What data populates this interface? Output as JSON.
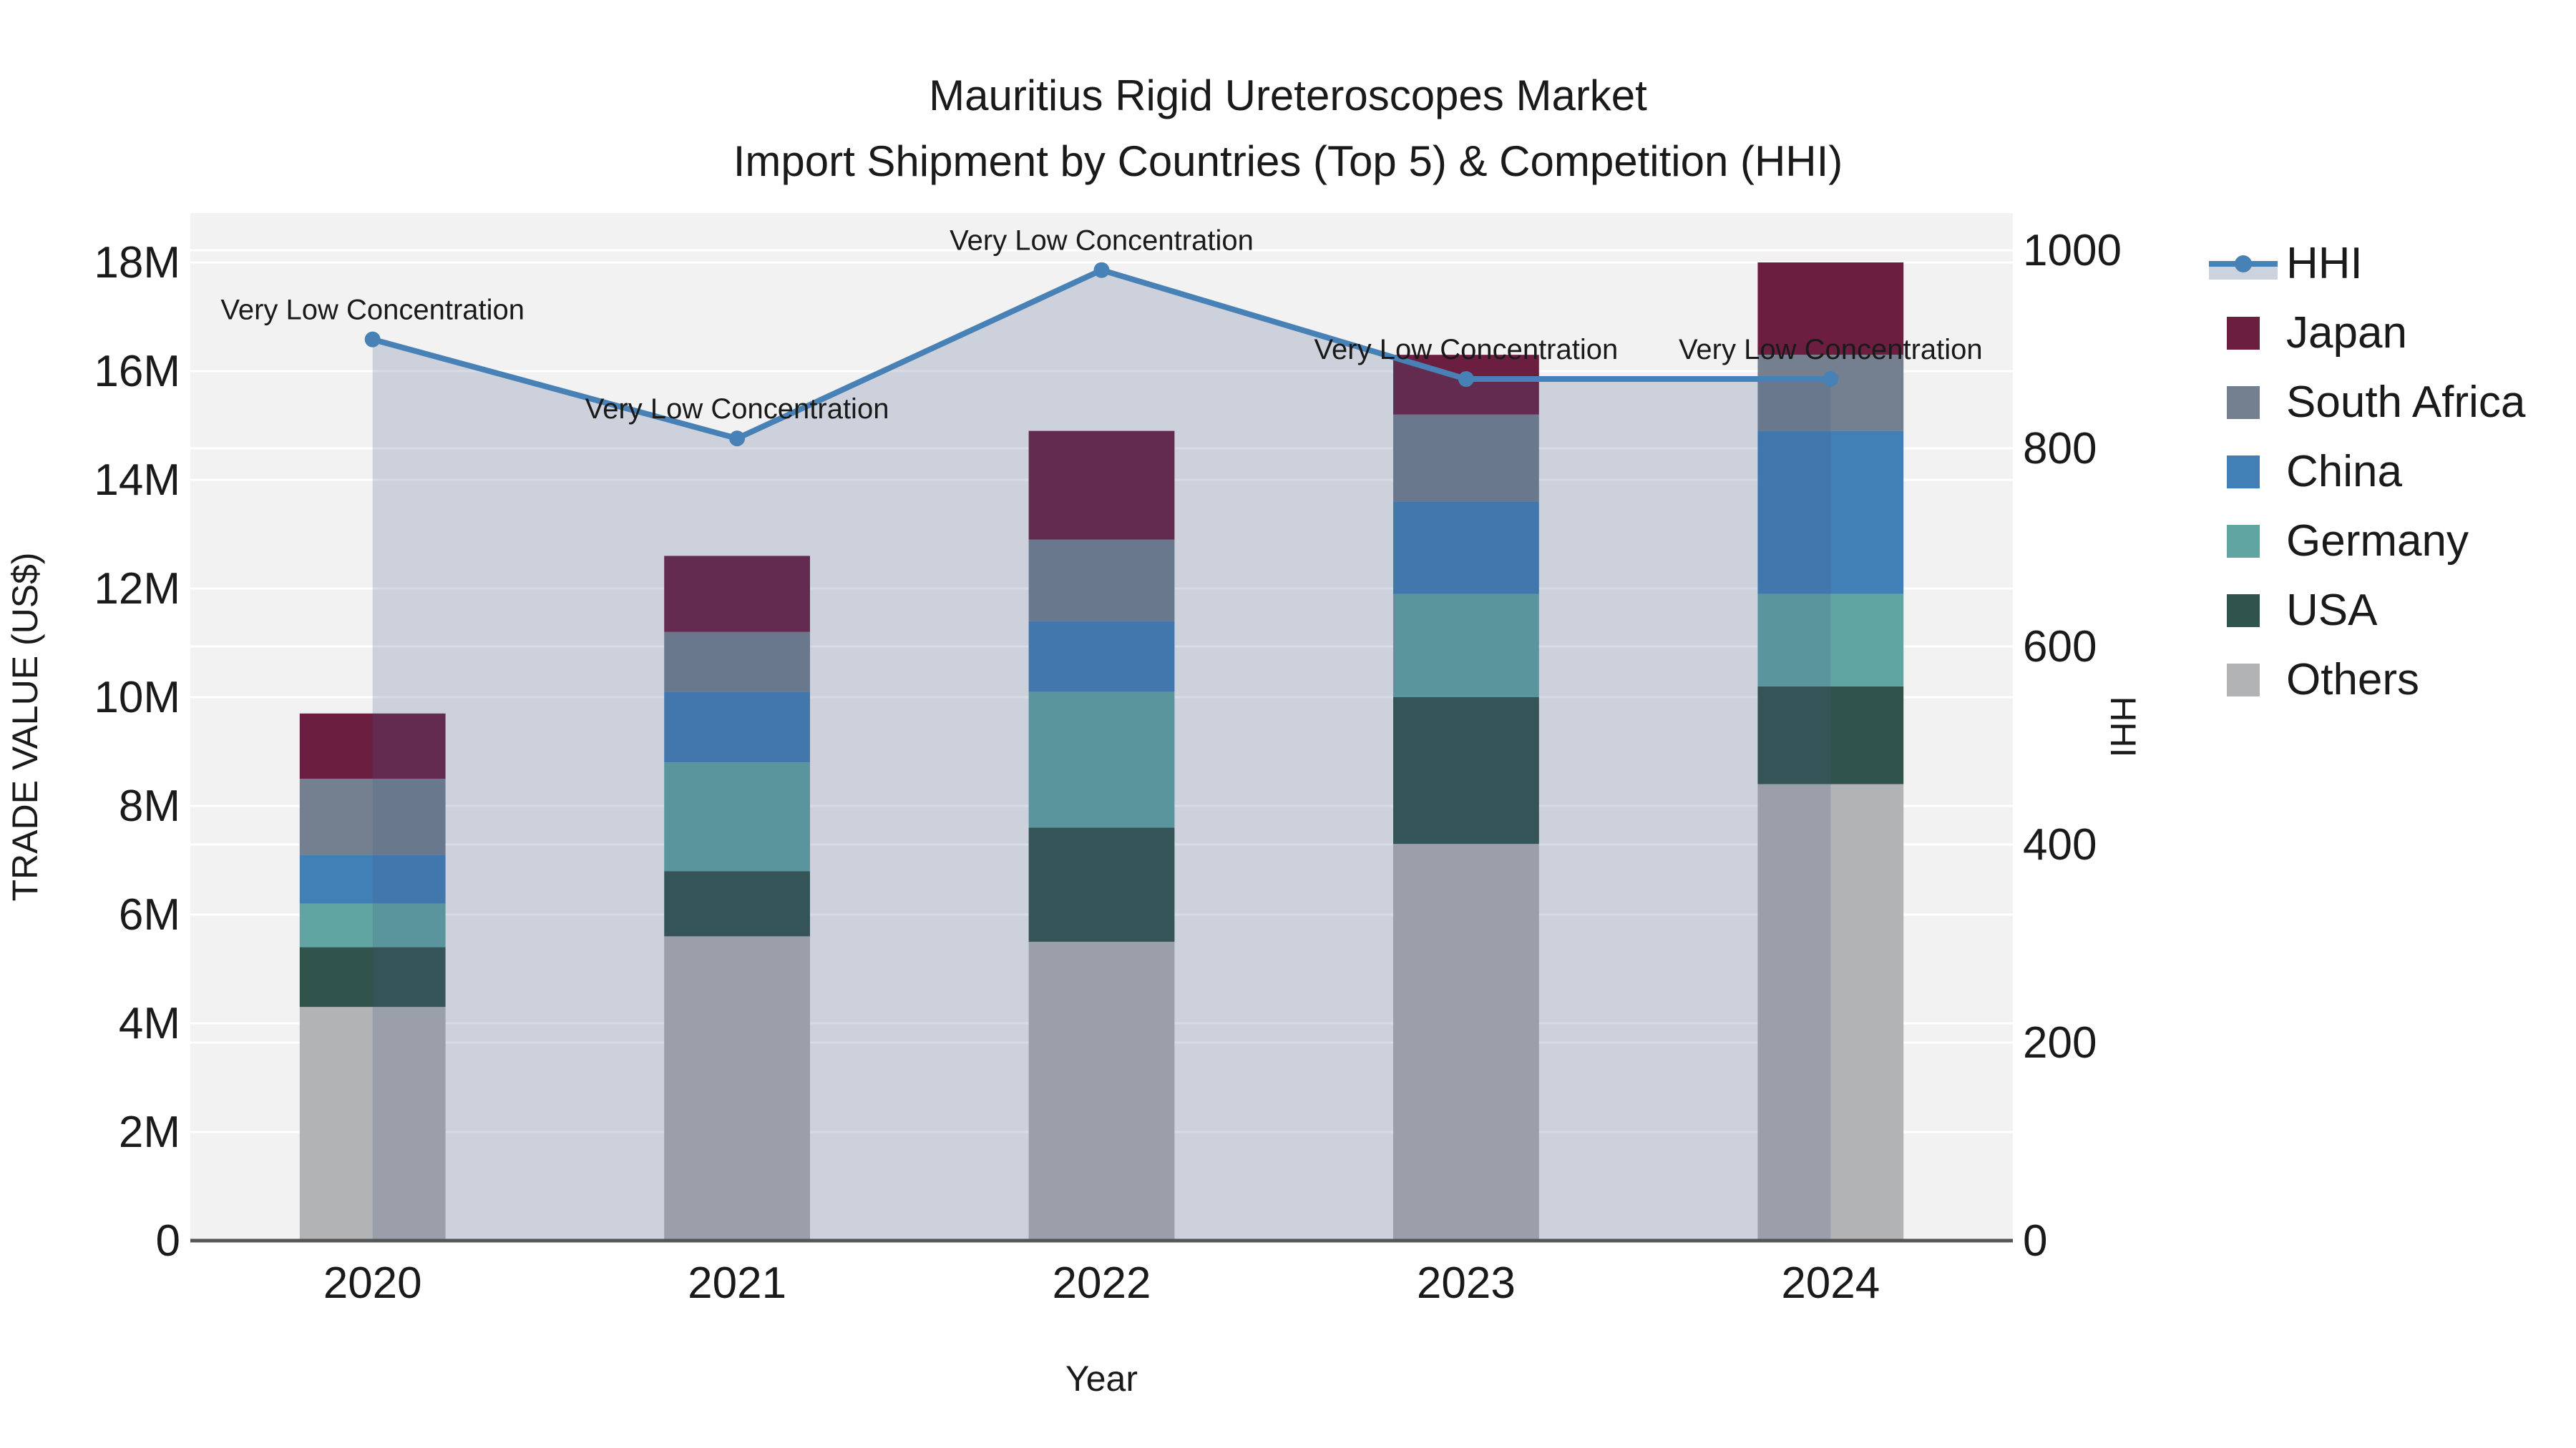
{
  "title": {
    "line1": "Mauritius Rigid Ureteroscopes Market",
    "line2": "Import Shipment by Countries (Top 5) & Competition (HHI)"
  },
  "axes": {
    "x": {
      "title": "Year",
      "categories": [
        "2020",
        "2021",
        "2022",
        "2023",
        "2024"
      ]
    },
    "y_left": {
      "title": "TRADE VALUE (US$)",
      "tick_labels": [
        "0",
        "2M",
        "4M",
        "6M",
        "8M",
        "10M",
        "12M",
        "14M",
        "16M",
        "18M"
      ],
      "tick_values_musd": [
        0,
        2,
        4,
        6,
        8,
        10,
        12,
        14,
        16,
        18
      ]
    },
    "y_right": {
      "title": "HHI",
      "tick_labels": [
        "0",
        "200",
        "400",
        "600",
        "800",
        "1000"
      ],
      "tick_values": [
        0,
        200,
        400,
        600,
        800,
        1000
      ]
    }
  },
  "legend": {
    "items": [
      {
        "label": "HHI",
        "type": "line",
        "color": "#4781b5",
        "band_color": "#ccd3de"
      },
      {
        "label": "Japan",
        "type": "swatch",
        "color": "#6c1e41"
      },
      {
        "label": "South Africa",
        "type": "swatch",
        "color": "#74808f"
      },
      {
        "label": "China",
        "type": "swatch",
        "color": "#417fb7"
      },
      {
        "label": "Germany",
        "type": "swatch",
        "color": "#61a5a2"
      },
      {
        "label": "USA",
        "type": "swatch",
        "color": "#30534b"
      },
      {
        "label": "Others",
        "type": "swatch",
        "color": "#b2b3b4"
      }
    ]
  },
  "chart_data": {
    "type": "bar+line",
    "title": "Mauritius Rigid Ureteroscopes Market — Import Shipment by Countries (Top 5) & Competition (HHI)",
    "categories": [
      "2020",
      "2021",
      "2022",
      "2023",
      "2024"
    ],
    "bar_unit": "million US$",
    "stack_order_bottom_to_top": [
      "Others",
      "USA",
      "Germany",
      "China",
      "South Africa",
      "Japan"
    ],
    "series": [
      {
        "name": "Others",
        "color": "#b2b3b4",
        "values": [
          4.3,
          5.6,
          5.5,
          7.3,
          8.4
        ]
      },
      {
        "name": "USA",
        "color": "#30534b",
        "values": [
          1.1,
          1.2,
          2.1,
          2.7,
          1.8
        ]
      },
      {
        "name": "Germany",
        "color": "#61a5a2",
        "values": [
          0.8,
          2.0,
          2.5,
          1.9,
          1.7
        ]
      },
      {
        "name": "China",
        "color": "#417fb7",
        "values": [
          0.9,
          1.3,
          1.3,
          1.7,
          3.0
        ]
      },
      {
        "name": "South Africa",
        "color": "#74808f",
        "values": [
          1.4,
          1.1,
          1.5,
          1.6,
          1.4
        ]
      },
      {
        "name": "Japan",
        "color": "#6c1e41",
        "values": [
          1.2,
          1.4,
          2.0,
          1.1,
          1.7
        ]
      }
    ],
    "bar_totals_musd": [
      9.7,
      12.6,
      14.9,
      16.3,
      18.0
    ],
    "line": {
      "name": "HHI",
      "axis": "right",
      "color": "#4781b5",
      "fill_color": "rgba(67,92,138,0.22)",
      "values": [
        910,
        810,
        980,
        870,
        870
      ]
    },
    "annotations": [
      "Very Low Concentration",
      "Very Low Concentration",
      "Very Low Concentration",
      "Very Low Concentration",
      "Very Low Concentration"
    ],
    "xlabel": "Year",
    "ylabel_left": "TRADE VALUE (US$)",
    "ylabel_right": "HHI",
    "ylim_left_musd": [
      0,
      18.9
    ],
    "ylim_right": [
      0,
      1012
    ],
    "grid": true,
    "legend_position": "right"
  },
  "colors": {
    "figure_bg": "#ffffff",
    "plot_bg": "#f2f2f2",
    "grid": "#ffffff",
    "axis_line": "#555555",
    "text": "#1a1a1a"
  }
}
